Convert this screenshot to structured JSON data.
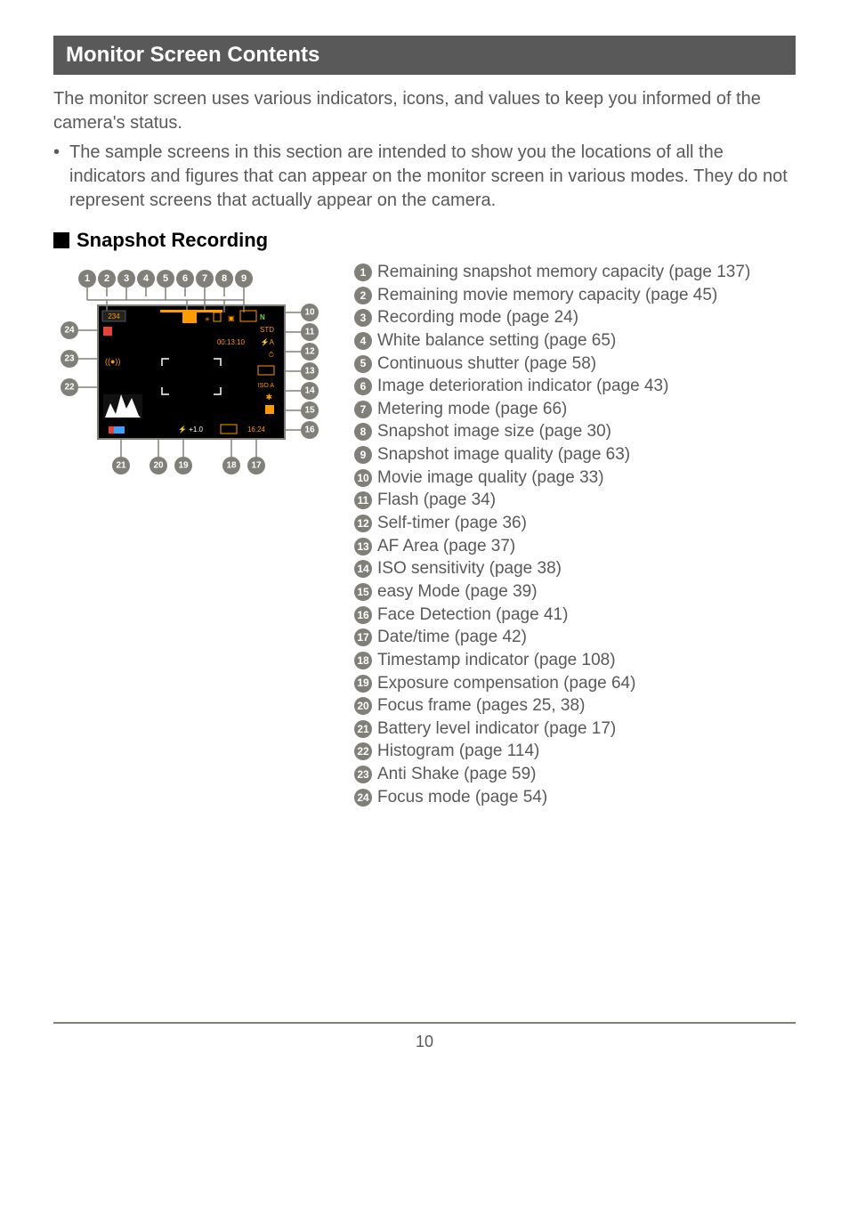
{
  "header_title": "Monitor Screen Contents",
  "intro_text": "The monitor screen uses various indicators, icons, and values to keep you informed of the camera's status.",
  "bullet_text": "The sample screens in this section are intended to show you the locations of all the indicators and figures that can appear on the monitor screen in various modes. They do not represent screens that actually appear on the camera.",
  "section_heading": "Snapshot Recording",
  "legend": [
    {
      "n": "1",
      "t": "Remaining snapshot memory capacity (page 137)"
    },
    {
      "n": "2",
      "t": "Remaining movie memory capacity (page 45)"
    },
    {
      "n": "3",
      "t": "Recording mode (page 24)"
    },
    {
      "n": "4",
      "t": "White balance setting (page 65)"
    },
    {
      "n": "5",
      "t": "Continuous shutter (page 58)"
    },
    {
      "n": "6",
      "t": "Image deterioration indicator (page 43)"
    },
    {
      "n": "7",
      "t": "Metering mode (page 66)"
    },
    {
      "n": "8",
      "t": "Snapshot image size (page 30)"
    },
    {
      "n": "9",
      "t": "Snapshot image quality (page 63)"
    },
    {
      "n": "10",
      "t": "Movie image quality (page 33)"
    },
    {
      "n": "11",
      "t": "Flash (page 34)"
    },
    {
      "n": "12",
      "t": "Self-timer (page 36)"
    },
    {
      "n": "13",
      "t": "AF Area (page 37)"
    },
    {
      "n": "14",
      "t": "ISO sensitivity (page 38)"
    },
    {
      "n": "15",
      "t": "easy Mode (page 39)"
    },
    {
      "n": "16",
      "t": "Face Detection (page 41)"
    },
    {
      "n": "17",
      "t": "Date/time (page 42)"
    },
    {
      "n": "18",
      "t": "Timestamp indicator (page 108)"
    },
    {
      "n": "19",
      "t": "Exposure compensation (page 64)"
    },
    {
      "n": "20",
      "t": "Focus frame (pages 25, 38)"
    },
    {
      "n": "21",
      "t": "Battery level indicator (page 17)"
    },
    {
      "n": "22",
      "t": "Histogram (page 114)"
    },
    {
      "n": "23",
      "t": "Anti Shake (page 59)"
    },
    {
      "n": "24",
      "t": "Focus mode (page 54)"
    }
  ],
  "diagram": {
    "screen_bg": "#000000",
    "screen_border": "#808078",
    "callout_circle_fill": "#808078",
    "callout_text": "#ffffff",
    "leader_color": "#808078",
    "status_text_color": "#ff9a00",
    "accent_green": "#7fd33a",
    "accent_yellow": "#f5d742",
    "accent_blue": "#3aa0ff",
    "accent_red": "#e5433a",
    "remaining_shots": "234",
    "movie_time": "00:13:10",
    "ev_value": "+1.0",
    "time_value": "16:24",
    "iso_label": "ISO A"
  },
  "page_number": "10"
}
